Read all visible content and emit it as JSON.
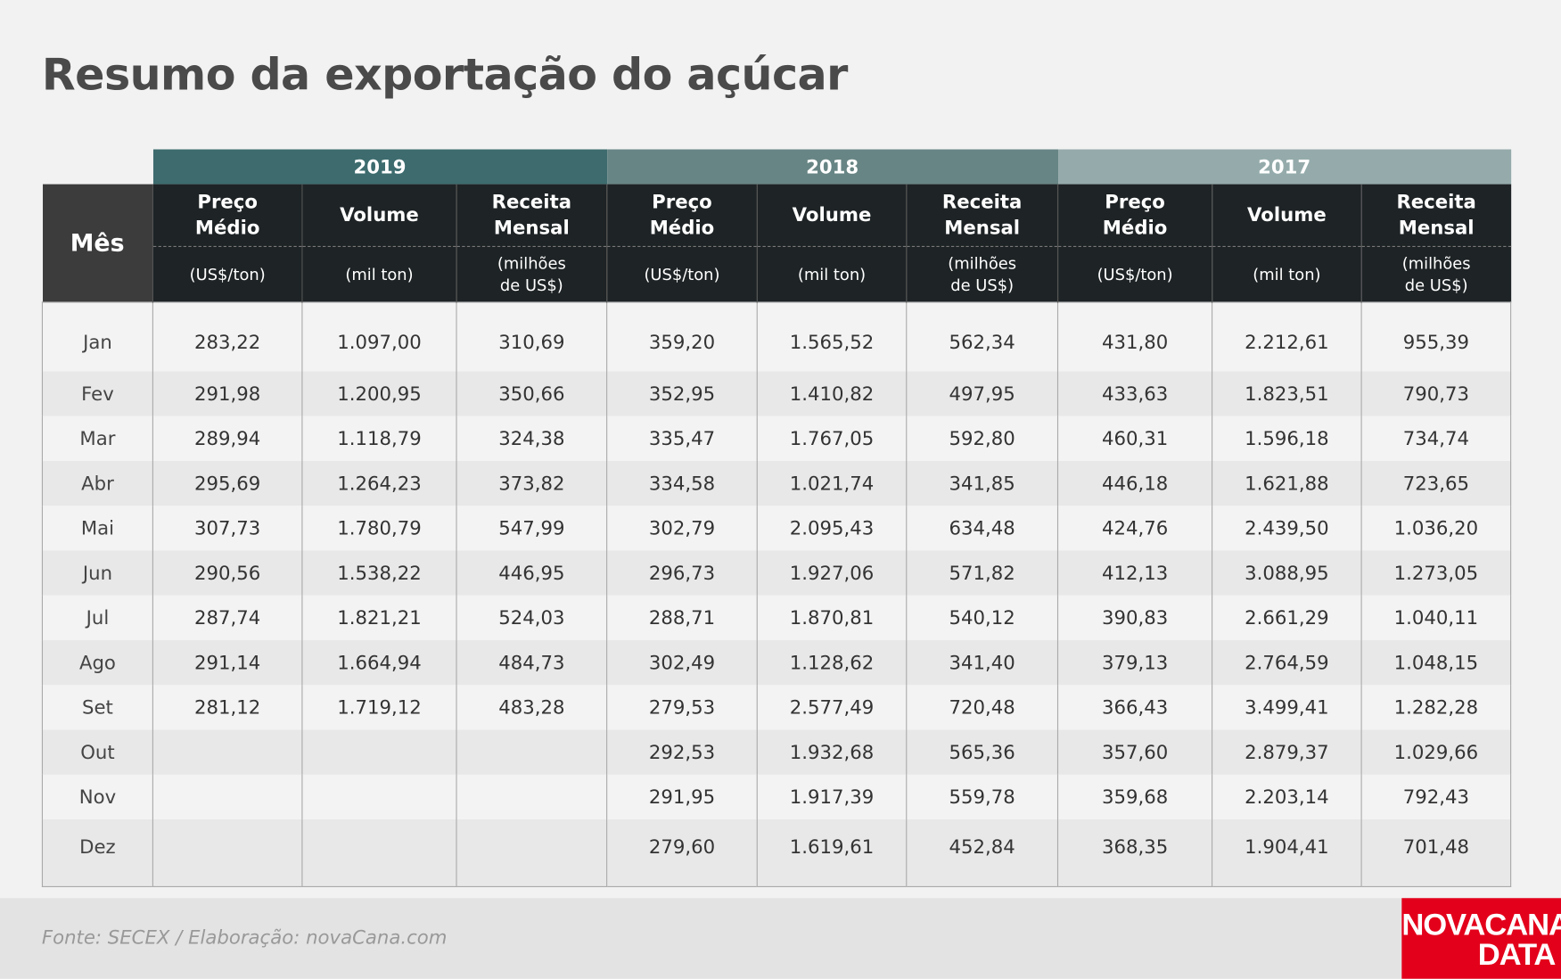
{
  "title": "Resumo da exportação do açúcar",
  "table": {
    "month_header": "Mês",
    "groups": [
      {
        "year": "2019",
        "columns": [
          {
            "name": "Preço Médio",
            "unit": "(US$/ton)"
          },
          {
            "name": "Volume",
            "unit": "(mil ton)"
          },
          {
            "name": "Receita Mensal",
            "unit": "(milhões de US$)"
          }
        ]
      },
      {
        "year": "2018",
        "columns": [
          {
            "name": "Preço Médio",
            "unit": "(US$/ton)"
          },
          {
            "name": "Volume",
            "unit": "(mil ton)"
          },
          {
            "name": "Receita Mensal",
            "unit": "(milhões de US$)"
          }
        ]
      },
      {
        "year": "2017",
        "columns": [
          {
            "name": "Preço Médio",
            "unit": "(US$/ton)"
          },
          {
            "name": "Volume",
            "unit": "(mil ton)"
          },
          {
            "name": "Receita Mensal",
            "unit": "(milhões de US$)"
          }
        ]
      }
    ],
    "rows": [
      {
        "month": "Jan",
        "values": [
          "283,22",
          "1.097,00",
          "310,69",
          "359,20",
          "1.565,52",
          "562,34",
          "431,80",
          "2.212,61",
          "955,39"
        ]
      },
      {
        "month": "Fev",
        "values": [
          "291,98",
          "1.200,95",
          "350,66",
          "352,95",
          "1.410,82",
          "497,95",
          "433,63",
          "1.823,51",
          "790,73"
        ]
      },
      {
        "month": "Mar",
        "values": [
          "289,94",
          "1.118,79",
          "324,38",
          "335,47",
          "1.767,05",
          "592,80",
          "460,31",
          "1.596,18",
          "734,74"
        ]
      },
      {
        "month": "Abr",
        "values": [
          "295,69",
          "1.264,23",
          "373,82",
          "334,58",
          "1.021,74",
          "341,85",
          "446,18",
          "1.621,88",
          "723,65"
        ]
      },
      {
        "month": "Mai",
        "values": [
          "307,73",
          "1.780,79",
          "547,99",
          "302,79",
          "2.095,43",
          "634,48",
          "424,76",
          "2.439,50",
          "1.036,20"
        ]
      },
      {
        "month": "Jun",
        "values": [
          "290,56",
          "1.538,22",
          "446,95",
          "296,73",
          "1.927,06",
          "571,82",
          "412,13",
          "3.088,95",
          "1.273,05"
        ]
      },
      {
        "month": "Jul",
        "values": [
          "287,74",
          "1.821,21",
          "524,03",
          "288,71",
          "1.870,81",
          "540,12",
          "390,83",
          "2.661,29",
          "1.040,11"
        ]
      },
      {
        "month": "Ago",
        "values": [
          "291,14",
          "1.664,94",
          "484,73",
          "302,49",
          "1.128,62",
          "341,40",
          "379,13",
          "2.764,59",
          "1.048,15"
        ]
      },
      {
        "month": "Set",
        "values": [
          "281,12",
          "1.719,12",
          "483,28",
          "279,53",
          "2.577,49",
          "720,48",
          "366,43",
          "3.499,41",
          "1.282,28"
        ]
      },
      {
        "month": "Out",
        "values": [
          null,
          null,
          null,
          "292,53",
          "1.932,68",
          "565,36",
          "357,60",
          "2.879,37",
          "1.029,66"
        ]
      },
      {
        "month": "Nov",
        "values": [
          null,
          null,
          null,
          "291,95",
          "1.917,39",
          "559,78",
          "359,68",
          "2.203,14",
          "792,43"
        ]
      },
      {
        "month": "Dez",
        "values": [
          null,
          null,
          null,
          "279,60",
          "1.619,61",
          "452,84",
          "368,35",
          "1.904,41",
          "701,48"
        ]
      }
    ]
  },
  "footer": {
    "source": "Fonte: SECEX  / Elaboração: novaCana.com",
    "logo_line1": "NOVACANA",
    "logo_line2": "DATA"
  }
}
